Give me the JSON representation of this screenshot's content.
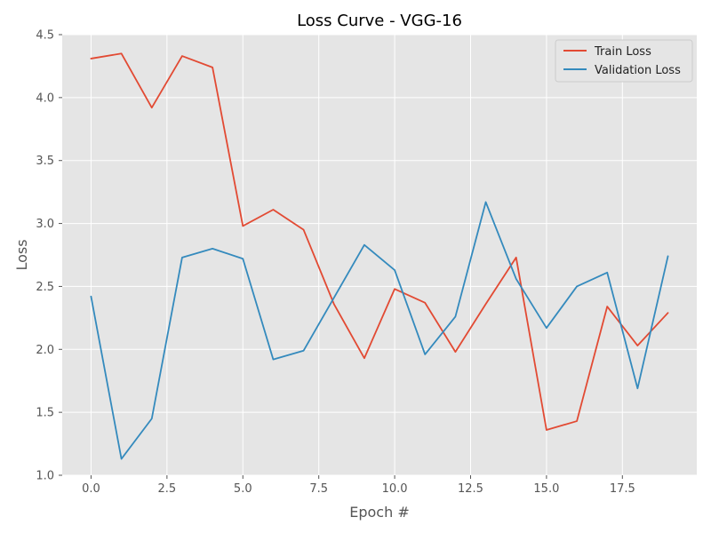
{
  "chart_data": {
    "type": "line",
    "title": "Loss Curve - VGG-16",
    "xlabel": "Epoch #",
    "ylabel": "Loss",
    "xlim": [
      -0.95,
      19.95
    ],
    "ylim": [
      1.0,
      4.5
    ],
    "x_ticks": [
      0.0,
      2.5,
      5.0,
      7.5,
      10.0,
      12.5,
      15.0,
      17.5
    ],
    "x_tick_labels": [
      "0.0",
      "2.5",
      "5.0",
      "7.5",
      "10.0",
      "12.5",
      "15.0",
      "17.5"
    ],
    "y_ticks": [
      1.0,
      1.5,
      2.0,
      2.5,
      3.0,
      3.5,
      4.0,
      4.5
    ],
    "y_tick_labels": [
      "1.0",
      "1.5",
      "2.0",
      "2.5",
      "3.0",
      "3.5",
      "4.0",
      "4.5"
    ],
    "grid": true,
    "legend_position": "top-right",
    "x": [
      0,
      1,
      2,
      3,
      4,
      5,
      6,
      7,
      8,
      9,
      10,
      11,
      12,
      13,
      14,
      15,
      16,
      17,
      18,
      19
    ],
    "series": [
      {
        "name": "Train Loss",
        "color": "#E24A33",
        "values": [
          4.31,
          4.35,
          3.92,
          4.33,
          4.24,
          2.98,
          3.11,
          2.95,
          2.36,
          1.93,
          2.48,
          2.37,
          1.98,
          2.36,
          2.73,
          1.36,
          1.43,
          2.34,
          2.03,
          2.29
        ]
      },
      {
        "name": "Validation Loss",
        "color": "#348ABD",
        "values": [
          2.42,
          1.13,
          1.45,
          2.73,
          2.8,
          2.72,
          1.92,
          1.99,
          2.41,
          2.83,
          2.63,
          1.96,
          2.26,
          3.17,
          2.56,
          2.17,
          2.5,
          2.61,
          1.69,
          2.74
        ]
      }
    ]
  }
}
